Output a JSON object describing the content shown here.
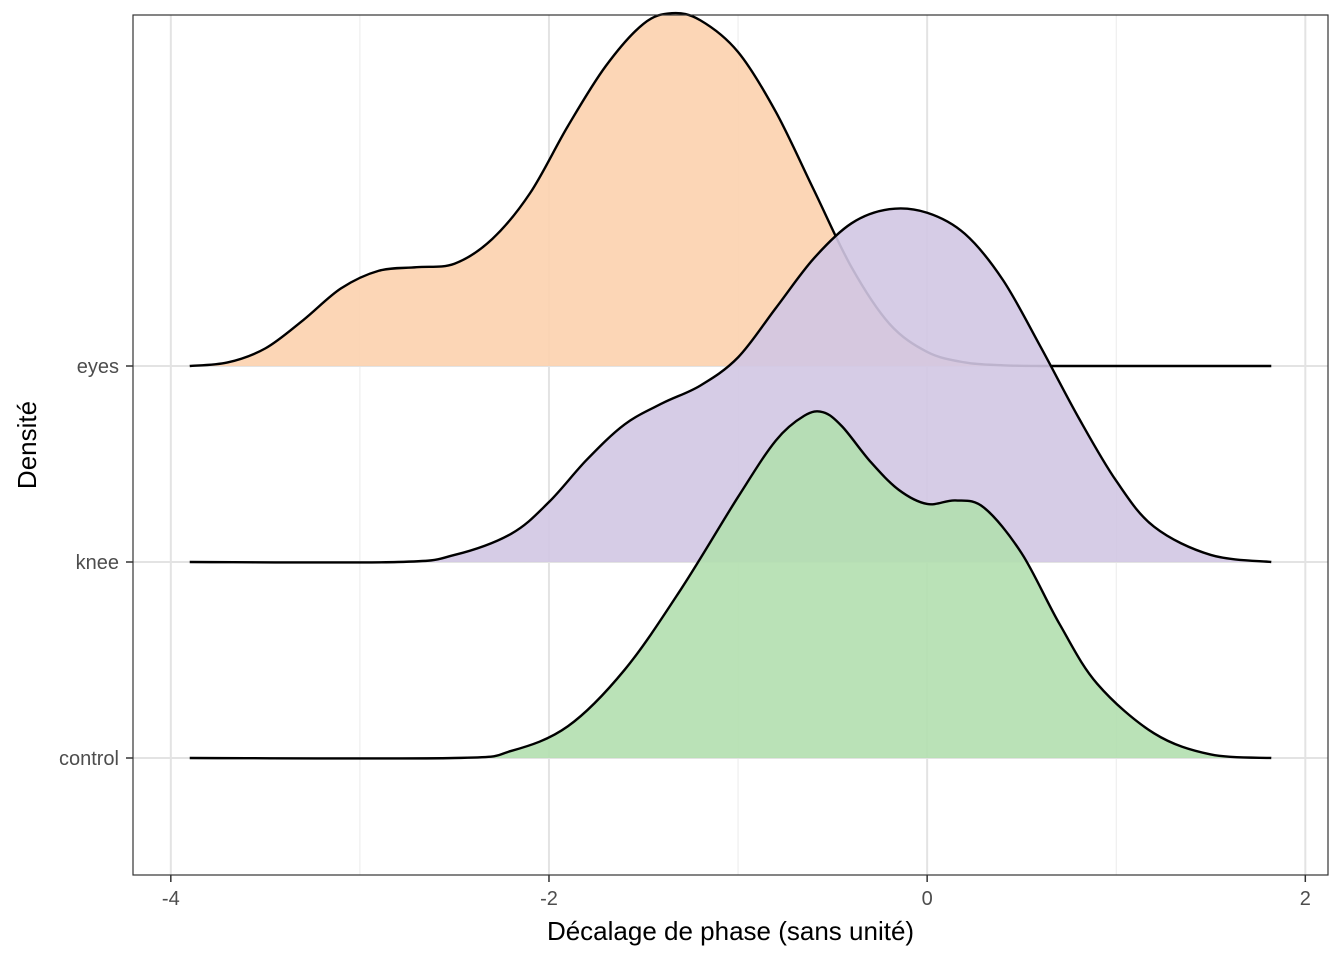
{
  "chart_data": {
    "type": "ridgeline",
    "title": "",
    "xlabel": "Décalage de phase (sans unité)",
    "ylabel": "Densité",
    "xlim": [
      -4.2,
      2.12
    ],
    "xticks": [
      -4,
      -2,
      0,
      2
    ],
    "x_minor_gridlines": [
      -3,
      -1,
      1
    ],
    "grid": true,
    "legend": "none",
    "categories": [
      "control",
      "knee",
      "eyes"
    ],
    "ridge_scale": 1.8,
    "series": [
      {
        "category": "control",
        "color": "#b2dfaf",
        "x": [
          -3.9,
          -2.5,
          -2.2,
          -1.9,
          -1.6,
          -1.3,
          -1.0,
          -0.8,
          -0.65,
          -0.55,
          -0.45,
          -0.3,
          -0.15,
          0.0,
          0.15,
          0.3,
          0.5,
          0.7,
          0.9,
          1.2,
          1.5,
          1.82
        ],
        "density": [
          0.0,
          0.0,
          0.02,
          0.09,
          0.25,
          0.48,
          0.74,
          0.9,
          0.97,
          0.98,
          0.94,
          0.84,
          0.76,
          0.72,
          0.73,
          0.71,
          0.58,
          0.38,
          0.21,
          0.07,
          0.01,
          0.0
        ]
      },
      {
        "category": "knee",
        "color": "#d2c7e3",
        "x": [
          -3.9,
          -2.8,
          -2.5,
          -2.2,
          -2.0,
          -1.8,
          -1.6,
          -1.4,
          -1.2,
          -1.0,
          -0.8,
          -0.6,
          -0.4,
          -0.2,
          0.0,
          0.2,
          0.4,
          0.6,
          0.8,
          1.0,
          1.2,
          1.5,
          1.82
        ],
        "density": [
          0.0,
          0.0,
          0.02,
          0.08,
          0.17,
          0.29,
          0.39,
          0.45,
          0.5,
          0.58,
          0.72,
          0.86,
          0.96,
          1.0,
          0.99,
          0.93,
          0.8,
          0.61,
          0.41,
          0.23,
          0.1,
          0.02,
          0.0
        ]
      },
      {
        "category": "eyes",
        "color": "#fcd2ae",
        "x": [
          -3.9,
          -3.7,
          -3.5,
          -3.3,
          -3.1,
          -2.9,
          -2.7,
          -2.5,
          -2.3,
          -2.1,
          -1.9,
          -1.7,
          -1.5,
          -1.35,
          -1.2,
          -1.0,
          -0.8,
          -0.6,
          -0.4,
          -0.2,
          0.0,
          0.2,
          0.4,
          0.6,
          1.0,
          1.82
        ],
        "density": [
          0.0,
          0.01,
          0.05,
          0.13,
          0.22,
          0.27,
          0.28,
          0.29,
          0.36,
          0.49,
          0.68,
          0.85,
          0.97,
          1.0,
          0.98,
          0.89,
          0.72,
          0.5,
          0.28,
          0.12,
          0.04,
          0.01,
          0.002,
          0.0,
          0.0,
          0.0
        ]
      }
    ]
  }
}
